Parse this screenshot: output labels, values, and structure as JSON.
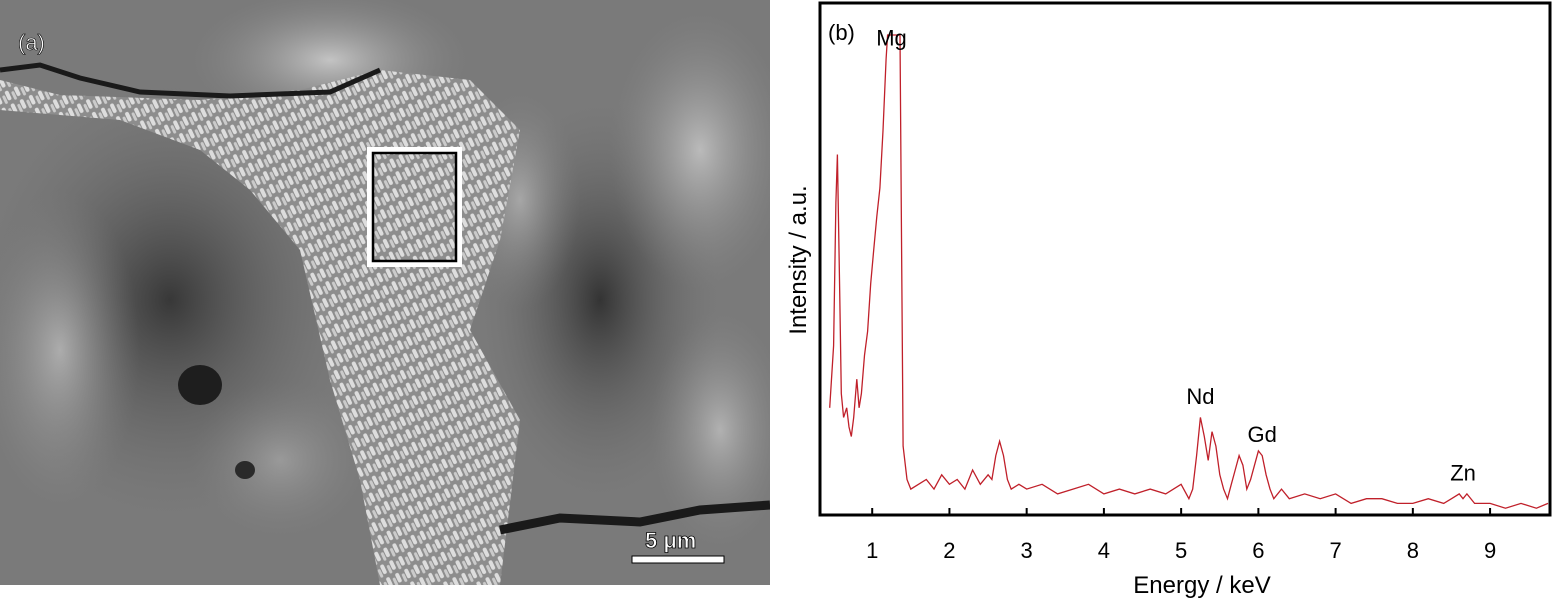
{
  "panel_a": {
    "label": "(a)",
    "scale_bar_label": "5 μm"
  },
  "chart_data": {
    "type": "line",
    "panel_label": "(b)",
    "xlabel": "Energy / keV",
    "ylabel": "Intensity / a.u.",
    "xlim": [
      0.35,
      9.75
    ],
    "ylim": [
      0,
      100
    ],
    "xticks": [
      1,
      2,
      3,
      4,
      5,
      6,
      7,
      8,
      9
    ],
    "grid": false,
    "line_color": "#c0202a",
    "annotations": [
      {
        "label": "Mg",
        "x": 1.25,
        "y": 97
      },
      {
        "label": "Nd",
        "x": 5.25,
        "y": 22
      },
      {
        "label": "Gd",
        "x": 6.05,
        "y": 14
      },
      {
        "label": "Zn",
        "x": 8.65,
        "y": 6
      }
    ],
    "series": [
      {
        "x": [
          0.45,
          0.5,
          0.53,
          0.55,
          0.58,
          0.6,
          0.63,
          0.67,
          0.7,
          0.73,
          0.76,
          0.8,
          0.83,
          0.86,
          0.9,
          0.94,
          0.98,
          1.02,
          1.06,
          1.1,
          1.14,
          1.18,
          1.2,
          1.25,
          1.3,
          1.36,
          1.38,
          1.4,
          1.45,
          1.5,
          1.6,
          1.7,
          1.8,
          1.9,
          2.0,
          2.1,
          2.2,
          2.3,
          2.4,
          2.5,
          2.55,
          2.6,
          2.65,
          2.7,
          2.75,
          2.8,
          2.9,
          3.0,
          3.2,
          3.4,
          3.6,
          3.8,
          4.0,
          4.2,
          4.4,
          4.6,
          4.8,
          5.0,
          5.1,
          5.15,
          5.2,
          5.25,
          5.3,
          5.35,
          5.4,
          5.45,
          5.5,
          5.55,
          5.6,
          5.65,
          5.7,
          5.75,
          5.8,
          5.85,
          5.9,
          5.95,
          6.0,
          6.05,
          6.1,
          6.15,
          6.2,
          6.3,
          6.4,
          6.6,
          6.8,
          7.0,
          7.2,
          7.4,
          7.6,
          7.8,
          8.0,
          8.2,
          8.4,
          8.5,
          8.6,
          8.65,
          8.7,
          8.8,
          9.0,
          9.2,
          9.4,
          9.6,
          9.75
        ],
        "y": [
          22,
          35,
          65,
          75,
          45,
          25,
          20,
          22,
          18,
          16,
          20,
          28,
          22,
          25,
          33,
          38,
          48,
          55,
          62,
          68,
          80,
          95,
          100,
          100,
          100,
          100,
          55,
          14,
          7,
          5,
          6,
          7,
          5,
          8,
          6,
          7,
          5,
          9,
          6,
          8,
          7,
          12,
          15,
          12,
          7,
          5,
          6,
          5,
          6,
          4,
          5,
          6,
          4,
          5,
          4,
          5,
          4,
          6,
          3,
          5,
          12,
          20,
          16,
          11,
          17,
          14,
          8,
          5,
          3,
          6,
          9,
          12,
          10,
          5,
          7,
          10,
          13,
          12,
          8,
          5,
          3,
          5,
          3,
          4,
          3,
          4,
          2,
          3,
          3,
          2,
          2,
          3,
          2,
          3,
          4,
          3,
          4,
          2,
          2,
          1,
          2,
          1,
          2
        ]
      }
    ]
  }
}
